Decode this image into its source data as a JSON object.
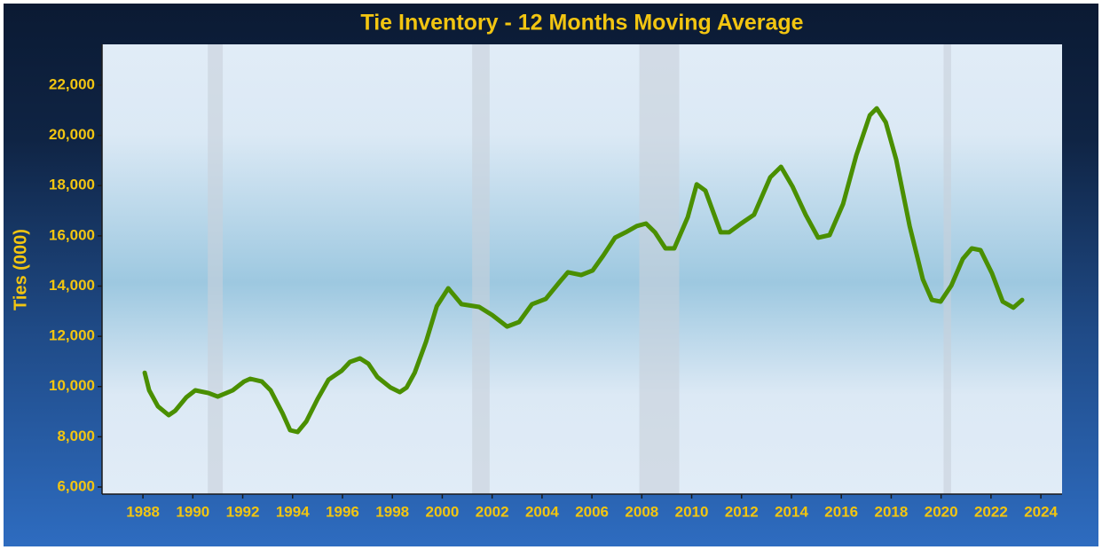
{
  "chart_data": {
    "type": "line",
    "title": "Tie Inventory - 12 Months Moving Average",
    "y_label": "Ties (000)",
    "x": [
      1988.07,
      1988.25,
      1988.6,
      1989.03,
      1989.3,
      1989.74,
      1990.1,
      1990.63,
      1991.0,
      1991.17,
      1991.6,
      1992.05,
      1992.3,
      1992.77,
      1993.12,
      1993.6,
      1993.9,
      1994.2,
      1994.55,
      1995.0,
      1995.44,
      1995.97,
      1996.3,
      1996.7,
      1997.04,
      1997.4,
      1997.93,
      1998.3,
      1998.57,
      1998.9,
      1999.35,
      1999.78,
      2000.24,
      2000.77,
      2001.48,
      2002.0,
      2002.6,
      2003.08,
      2003.6,
      2004.15,
      2004.7,
      2005.04,
      2005.57,
      2006.03,
      2006.46,
      2006.93,
      2007.35,
      2007.8,
      2008.17,
      2008.53,
      2008.95,
      2009.3,
      2009.84,
      2010.2,
      2010.55,
      2011.16,
      2011.5,
      2011.98,
      2012.5,
      2013.15,
      2013.58,
      2014.04,
      2014.57,
      2015.07,
      2015.53,
      2016.07,
      2016.6,
      2017.14,
      2017.42,
      2017.78,
      2018.2,
      2018.74,
      2019.27,
      2019.63,
      2019.98,
      2020.41,
      2020.87,
      2021.23,
      2021.58,
      2022.04,
      2022.47,
      2022.9,
      2023.25
    ],
    "series": [
      {
        "name": "Ties",
        "color": "#4a8f00",
        "values": [
          10550,
          9850,
          9210,
          8860,
          9040,
          9570,
          9850,
          9740,
          9600,
          9670,
          9850,
          10200,
          10310,
          10200,
          9850,
          8930,
          8260,
          8190,
          8610,
          9500,
          10270,
          10630,
          10980,
          11120,
          10910,
          10380,
          9960,
          9780,
          9960,
          10560,
          11790,
          13200,
          13910,
          13280,
          13170,
          12850,
          12390,
          12570,
          13280,
          13490,
          14160,
          14550,
          14440,
          14620,
          15220,
          15930,
          16140,
          16390,
          16490,
          16140,
          15500,
          15500,
          16740,
          18050,
          17800,
          16140,
          16140,
          16490,
          16840,
          18330,
          18750,
          17970,
          16840,
          15930,
          16030,
          17270,
          19210,
          20800,
          21080,
          20520,
          19030,
          16390,
          14270,
          13450,
          13380,
          14020,
          15080,
          15500,
          15430,
          14510,
          13380,
          13140,
          13450
        ]
      }
    ],
    "shaded_ranges": [
      [
        1990.6,
        1991.2
      ],
      [
        2001.2,
        2001.9
      ],
      [
        2007.9,
        2009.5
      ],
      [
        2020.1,
        2020.4
      ]
    ],
    "xlim": [
      1986.36,
      2024.85
    ],
    "ylim": [
      5717,
      23625
    ],
    "xticks": [
      1988,
      1990,
      1992,
      1994,
      1996,
      1998,
      2000,
      2002,
      2004,
      2006,
      2008,
      2010,
      2012,
      2014,
      2016,
      2018,
      2020,
      2022,
      2024
    ],
    "yticks": [
      {
        "value": 6000,
        "label": "6,000"
      },
      {
        "value": 8000,
        "label": "8,000"
      },
      {
        "value": 10000,
        "label": "10,000"
      },
      {
        "value": 12000,
        "label": "12,000"
      },
      {
        "value": 14000,
        "label": "14,000"
      },
      {
        "value": 16000,
        "label": "16,000"
      },
      {
        "value": 18000,
        "label": "18,000"
      },
      {
        "value": 20000,
        "label": "20,000"
      },
      {
        "value": 22000,
        "label": "22,000"
      }
    ]
  }
}
